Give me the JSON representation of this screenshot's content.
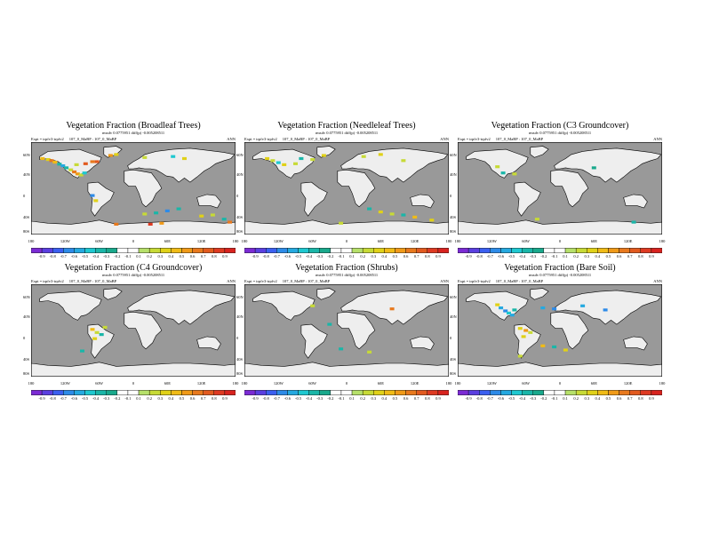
{
  "colors": {
    "ocean": "#999999",
    "land": "#eeeeee",
    "coast": "#000000",
    "scale": [
      "#7b2bd4",
      "#5a3fe0",
      "#3b5ff0",
      "#2d8be8",
      "#25a9e0",
      "#1ec8d0",
      "#1ab6a8",
      "#19a98c",
      "#ffffff",
      "#ffffff",
      "#b6e06a",
      "#c7da36",
      "#e0d118",
      "#f0bb16",
      "#f09a18",
      "#e8791d",
      "#e25a1f",
      "#de3a22",
      "#d8231f"
    ]
  },
  "colorbar_labels": [
    "-0.9",
    "-0.8",
    "-0.7",
    "-0.6",
    "-0.5",
    "-0.4",
    "-0.3",
    "-0.2",
    "-0.1",
    "0.1",
    "0.2",
    "0.3",
    "0.4",
    "0.5",
    "0.6",
    "0.7",
    "0.8",
    "0.9"
  ],
  "lat_labels": [
    "60N",
    "40N",
    "0",
    "40S",
    "80S"
  ],
  "lon_labels": [
    "180",
    "120W",
    "60W",
    "0",
    "60E",
    "120E",
    "180"
  ],
  "panels": [
    {
      "title": "Vegetation Fraction (Broadleaf Trees)",
      "info": "rmsdv 0.0775951 diff(p) -0.005208511",
      "expt": "Expt = trpfv3-trpfv2",
      "runs": "107_0_MaBP : 107_0_MaBP",
      "season": "ANN",
      "anomalies": [
        {
          "lon": -160,
          "lat": 58,
          "v": 0.4
        },
        {
          "lon": -150,
          "lat": 56,
          "v": 0.3
        },
        {
          "lon": -144,
          "lat": 54,
          "v": 0.6
        },
        {
          "lon": -138,
          "lat": 51,
          "v": 0.4
        },
        {
          "lon": -130,
          "lat": 47,
          "v": -0.3
        },
        {
          "lon": -124,
          "lat": 44,
          "v": -0.5
        },
        {
          "lon": -118,
          "lat": 40,
          "v": -0.3
        },
        {
          "lon": -110,
          "lat": 36,
          "v": 0.2
        },
        {
          "lon": -104,
          "lat": 32,
          "v": 0.6
        },
        {
          "lon": -98,
          "lat": 28,
          "v": 0.5
        },
        {
          "lon": -92,
          "lat": 26,
          "v": 0.2
        },
        {
          "lon": -86,
          "lat": 30,
          "v": -0.4
        },
        {
          "lon": -100,
          "lat": 46,
          "v": 0.2
        },
        {
          "lon": -84,
          "lat": 48,
          "v": 0.7
        },
        {
          "lon": -72,
          "lat": 52,
          "v": 0.6
        },
        {
          "lon": -64,
          "lat": 52,
          "v": 0.7
        },
        {
          "lon": -40,
          "lat": 64,
          "v": 0.5
        },
        {
          "lon": -30,
          "lat": 66,
          "v": 0.3
        },
        {
          "lon": 20,
          "lat": 60,
          "v": 0.2
        },
        {
          "lon": 70,
          "lat": 62,
          "v": -0.4
        },
        {
          "lon": 90,
          "lat": 58,
          "v": 0.3
        },
        {
          "lon": -72,
          "lat": -14,
          "v": -0.6
        },
        {
          "lon": -66,
          "lat": -24,
          "v": 0.3
        },
        {
          "lon": 20,
          "lat": -50,
          "v": 0.2
        },
        {
          "lon": 40,
          "lat": -48,
          "v": -0.3
        },
        {
          "lon": 60,
          "lat": -44,
          "v": -0.6
        },
        {
          "lon": 80,
          "lat": -40,
          "v": -0.3
        },
        {
          "lon": 120,
          "lat": -54,
          "v": 0.3
        },
        {
          "lon": 140,
          "lat": -52,
          "v": 0.2
        },
        {
          "lon": 160,
          "lat": -60,
          "v": -0.3
        },
        {
          "lon": 170,
          "lat": -66,
          "v": 0.6
        },
        {
          "lon": 30,
          "lat": -70,
          "v": 0.8
        },
        {
          "lon": 50,
          "lat": -68,
          "v": 0.5
        },
        {
          "lon": -30,
          "lat": -70,
          "v": 0.6
        }
      ]
    },
    {
      "title": "Vegetation Fraction (Needleleaf Trees)",
      "info": "rmsdv 0.0775951 diff(p) -0.005208511",
      "expt": "Expt = trpfv3-trpfv2",
      "runs": "107_0_MaBP : 107_0_MaBP",
      "season": "ANN",
      "anomalies": [
        {
          "lon": -140,
          "lat": 58,
          "v": 0.3
        },
        {
          "lon": -130,
          "lat": 54,
          "v": 0.2
        },
        {
          "lon": -120,
          "lat": 50,
          "v": -0.4
        },
        {
          "lon": -110,
          "lat": 46,
          "v": 0.3
        },
        {
          "lon": -90,
          "lat": 48,
          "v": 0.2
        },
        {
          "lon": -80,
          "lat": 58,
          "v": -0.3
        },
        {
          "lon": -60,
          "lat": 56,
          "v": 0.2
        },
        {
          "lon": -40,
          "lat": 64,
          "v": 0.3
        },
        {
          "lon": 30,
          "lat": 62,
          "v": 0.2
        },
        {
          "lon": 60,
          "lat": 66,
          "v": 0.3
        },
        {
          "lon": 100,
          "lat": 54,
          "v": 0.2
        },
        {
          "lon": 40,
          "lat": -40,
          "v": -0.3
        },
        {
          "lon": 60,
          "lat": -46,
          "v": 0.3
        },
        {
          "lon": 80,
          "lat": -50,
          "v": 0.2
        },
        {
          "lon": 100,
          "lat": -52,
          "v": -0.3
        },
        {
          "lon": 120,
          "lat": -56,
          "v": 0.4
        },
        {
          "lon": 150,
          "lat": -62,
          "v": 0.3
        },
        {
          "lon": -10,
          "lat": -68,
          "v": 0.2
        }
      ]
    },
    {
      "title": "Vegetation Fraction (C3 Groundcover)",
      "info": "rmsdv 0.0775951 diff(p) -0.005208511",
      "expt": "Expt = trpfv3-trpfv2",
      "runs": "107_0_MaBP : 107_0_MaBP",
      "season": "ANN",
      "anomalies": [
        {
          "lon": -110,
          "lat": 42,
          "v": 0.2
        },
        {
          "lon": -100,
          "lat": 30,
          "v": -0.3
        },
        {
          "lon": -80,
          "lat": 28,
          "v": 0.2
        },
        {
          "lon": 60,
          "lat": 40,
          "v": -0.2
        },
        {
          "lon": -40,
          "lat": -60,
          "v": 0.2
        },
        {
          "lon": 130,
          "lat": -66,
          "v": -0.3
        }
      ]
    },
    {
      "title": "Vegetation Fraction (C4 Groundcover)",
      "info": "rmsdv 0.0775951 diff(p) -0.005208511",
      "expt": "Expt = trpfv3-trpfv2",
      "runs": "107_0_MaBP : 107_0_MaBP",
      "season": "ANN",
      "anomalies": [
        {
          "lon": -72,
          "lat": 2,
          "v": 0.4
        },
        {
          "lon": -64,
          "lat": -4,
          "v": 0.2
        },
        {
          "lon": -56,
          "lat": -8,
          "v": -0.3
        },
        {
          "lon": -68,
          "lat": -16,
          "v": 0.3
        },
        {
          "lon": -50,
          "lat": 6,
          "v": 0.2
        },
        {
          "lon": -90,
          "lat": -40,
          "v": -0.3
        }
      ]
    },
    {
      "title": "Vegetation Fraction (Shrubs)",
      "info": "rmsdv 0.0775951 diff(p) -0.005208511",
      "expt": "Expt = trpfv3-trpfv2",
      "runs": "107_0_MaBP : 107_0_MaBP",
      "season": "ANN",
      "anomalies": [
        {
          "lon": -60,
          "lat": 48,
          "v": 0.2
        },
        {
          "lon": -30,
          "lat": 12,
          "v": -0.3
        },
        {
          "lon": 80,
          "lat": 42,
          "v": 0.6
        },
        {
          "lon": 40,
          "lat": -42,
          "v": 0.2
        },
        {
          "lon": -10,
          "lat": -36,
          "v": -0.3
        }
      ]
    },
    {
      "title": "Vegetation Fraction (Bare Soil)",
      "info": "rmsdv 0.0775951 diff(p) -0.005208511",
      "expt": "Expt = trpfv3-trpfv2",
      "runs": "107_0_MaBP : 107_0_MaBP",
      "season": "ANN",
      "anomalies": [
        {
          "lon": -110,
          "lat": 50,
          "v": 0.3
        },
        {
          "lon": -104,
          "lat": 44,
          "v": -0.5
        },
        {
          "lon": -96,
          "lat": 38,
          "v": -0.6
        },
        {
          "lon": -90,
          "lat": 34,
          "v": -0.4
        },
        {
          "lon": -84,
          "lat": 30,
          "v": -0.5
        },
        {
          "lon": -80,
          "lat": 40,
          "v": -0.3
        },
        {
          "lon": -30,
          "lat": 44,
          "v": -0.5
        },
        {
          "lon": -10,
          "lat": 42,
          "v": -0.6
        },
        {
          "lon": 40,
          "lat": 48,
          "v": -0.5
        },
        {
          "lon": 80,
          "lat": 40,
          "v": -0.6
        },
        {
          "lon": -70,
          "lat": 4,
          "v": 0.3
        },
        {
          "lon": -60,
          "lat": 0,
          "v": 0.5
        },
        {
          "lon": -52,
          "lat": -4,
          "v": 0.2
        },
        {
          "lon": -64,
          "lat": -12,
          "v": 0.3
        },
        {
          "lon": -30,
          "lat": -30,
          "v": 0.4
        },
        {
          "lon": -10,
          "lat": -32,
          "v": -0.3
        },
        {
          "lon": 10,
          "lat": -38,
          "v": 0.3
        },
        {
          "lon": -70,
          "lat": -50,
          "v": 0.2
        }
      ]
    }
  ]
}
